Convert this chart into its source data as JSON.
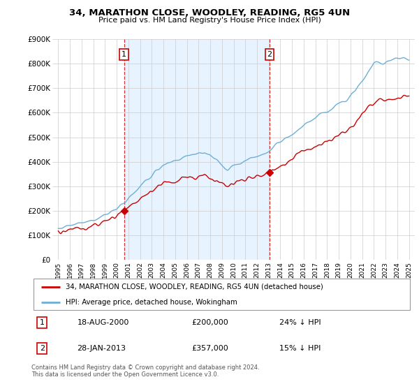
{
  "title": "34, MARATHON CLOSE, WOODLEY, READING, RG5 4UN",
  "subtitle": "Price paid vs. HM Land Registry's House Price Index (HPI)",
  "legend_line1": "34, MARATHON CLOSE, WOODLEY, READING, RG5 4UN (detached house)",
  "legend_line2": "HPI: Average price, detached house, Wokingham",
  "annotation1_label": "1",
  "annotation1_date": "18-AUG-2000",
  "annotation1_price": "£200,000",
  "annotation1_hpi": "24% ↓ HPI",
  "annotation2_label": "2",
  "annotation2_date": "28-JAN-2013",
  "annotation2_price": "£357,000",
  "annotation2_hpi": "15% ↓ HPI",
  "footer": "Contains HM Land Registry data © Crown copyright and database right 2024.\nThis data is licensed under the Open Government Licence v3.0.",
  "hpi_color": "#6dafd6",
  "price_color": "#cc0000",
  "annotation_color": "#cc0000",
  "vline_color": "#cc0000",
  "shade_color": "#ddeeff",
  "ylim": [
    0,
    900000
  ],
  "yticks": [
    0,
    100000,
    200000,
    300000,
    400000,
    500000,
    600000,
    700000,
    800000,
    900000
  ],
  "sale1_year": 2000.63,
  "sale1_price": 200000,
  "sale2_year": 2013.08,
  "sale2_price": 357000
}
